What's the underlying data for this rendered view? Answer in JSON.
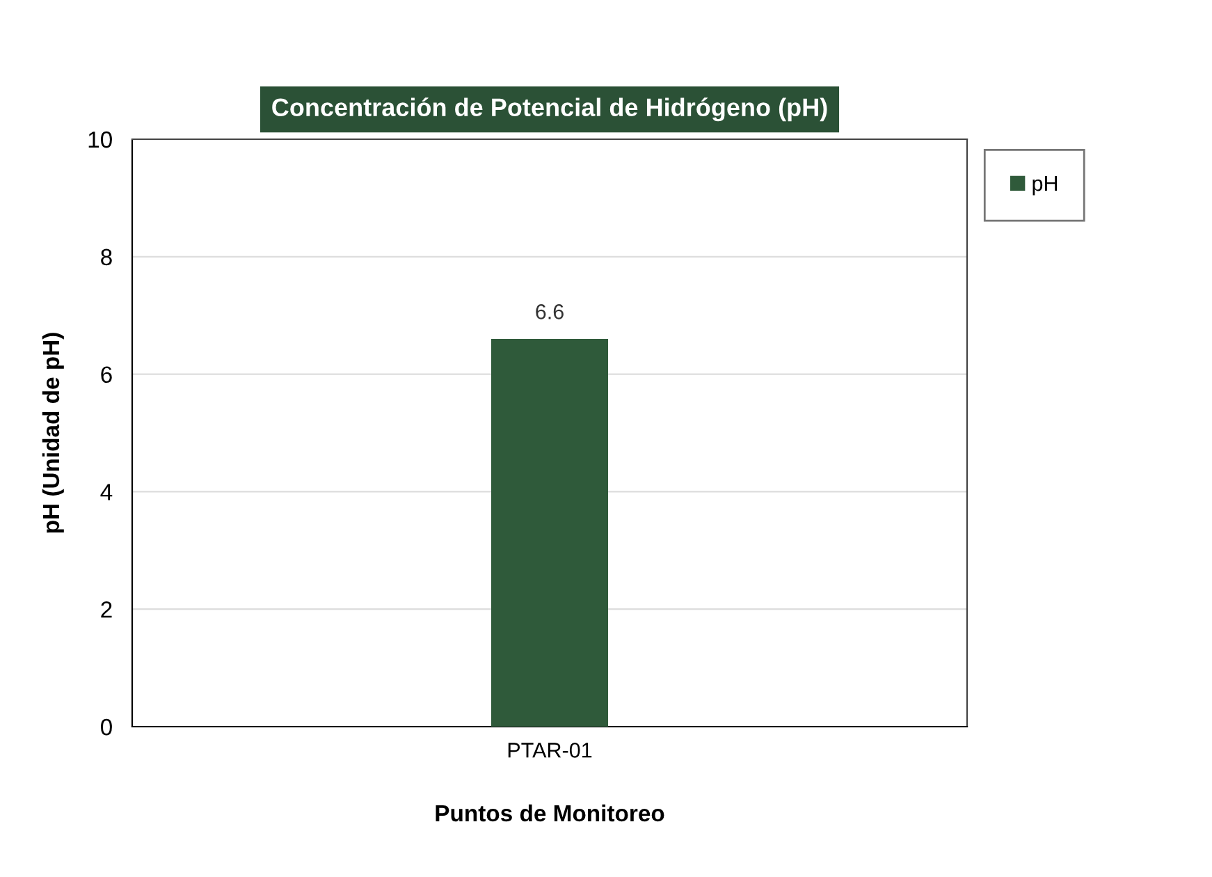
{
  "chart_data": {
    "type": "bar",
    "title": "Concentración de Potencial de Hidrógeno (pH)",
    "xlabel": "Puntos de Monitoreo",
    "ylabel": "pH (Unidad de pH)",
    "categories": [
      "PTAR-01"
    ],
    "series": [
      {
        "name": "pH",
        "color": "#2f5a3a",
        "values": [
          6.6
        ]
      }
    ],
    "ylim": [
      0,
      10
    ],
    "yticks": [
      0,
      2,
      4,
      6,
      8,
      10
    ],
    "grid": "y",
    "legend": "top right",
    "data_labels": true
  }
}
